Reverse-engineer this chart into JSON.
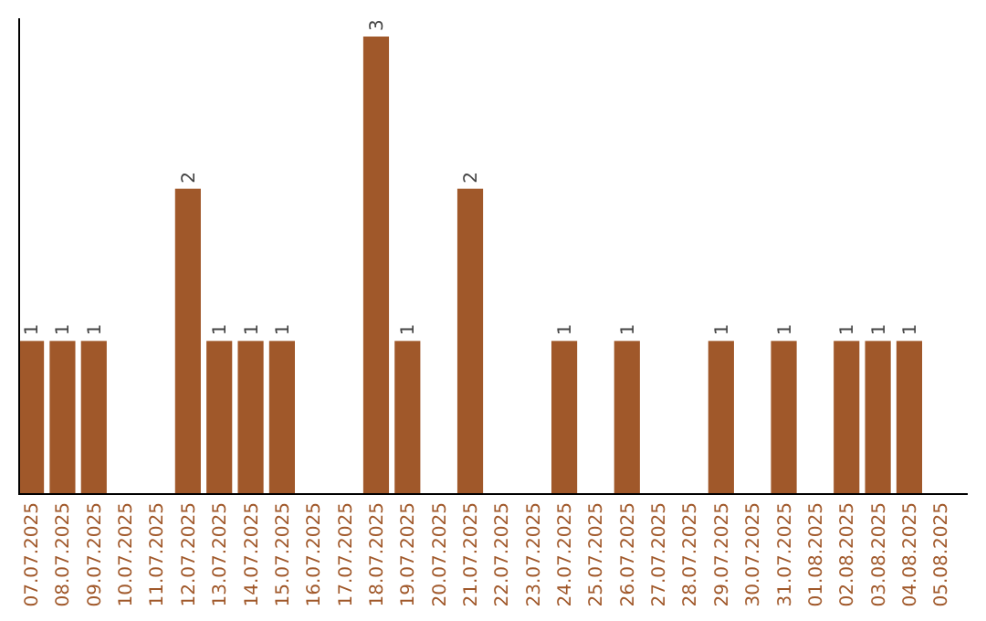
{
  "chart_data": {
    "type": "bar",
    "categories": [
      "07.07.2025",
      "08.07.2025",
      "09.07.2025",
      "10.07.2025",
      "11.07.2025",
      "12.07.2025",
      "13.07.2025",
      "14.07.2025",
      "15.07.2025",
      "16.07.2025",
      "17.07.2025",
      "18.07.2025",
      "19.07.2025",
      "20.07.2025",
      "21.07.2025",
      "22.07.2025",
      "23.07.2025",
      "24.07.2025",
      "25.07.2025",
      "26.07.2025",
      "27.07.2025",
      "28.07.2025",
      "29.07.2025",
      "30.07.2025",
      "31.07.2025",
      "01.08.2025",
      "02.08.2025",
      "03.08.2025",
      "04.08.2025",
      "05.08.2025"
    ],
    "values": [
      1,
      1,
      1,
      0,
      0,
      2,
      1,
      1,
      1,
      0,
      0,
      3,
      1,
      0,
      2,
      0,
      0,
      1,
      0,
      1,
      0,
      0,
      1,
      0,
      1,
      0,
      1,
      1,
      1,
      0
    ],
    "value_labels": [
      "1",
      "1",
      "1",
      null,
      null,
      "2",
      "1",
      "1",
      "1",
      null,
      null,
      "3",
      "1",
      null,
      "2",
      null,
      null,
      "1",
      null,
      "1",
      null,
      null,
      "1",
      null,
      "1",
      null,
      "1",
      "1",
      "1",
      null
    ],
    "color": "#a0582a",
    "tick_labels": "x"
  }
}
